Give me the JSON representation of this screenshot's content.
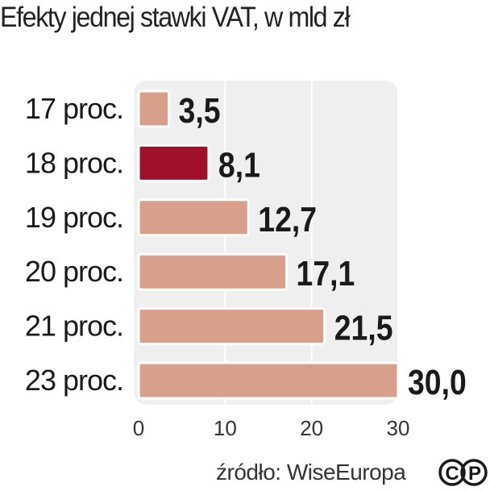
{
  "chart_data": {
    "type": "bar",
    "orientation": "horizontal",
    "title": "Efekty jednej stawki VAT, w mld zł",
    "categories": [
      "17 proc.",
      "18 proc.",
      "19 proc.",
      "20 proc.",
      "21 proc.",
      "23 proc."
    ],
    "values": [
      3.5,
      8.1,
      12.7,
      17.1,
      21.5,
      30.0
    ],
    "value_labels": [
      "3,5",
      "8,1",
      "12,7",
      "17,1",
      "21,5",
      "30,0"
    ],
    "highlight_index": 1,
    "x_ticks": [
      "0",
      "10",
      "20",
      "30"
    ],
    "x_tick_values": [
      0,
      10,
      20,
      30
    ],
    "xlim": [
      0,
      30
    ],
    "grid": true,
    "xlabel": "",
    "ylabel": "",
    "colors": {
      "bar": "#d8a08a",
      "bar_highlight": "#a0102a",
      "plot_background": "#efefef",
      "grid": "#ffffff"
    }
  },
  "source": "źródło: WiseEuropa",
  "logo": {
    "icon": "copyright-press-icon",
    "letters": [
      "C",
      "P"
    ]
  }
}
